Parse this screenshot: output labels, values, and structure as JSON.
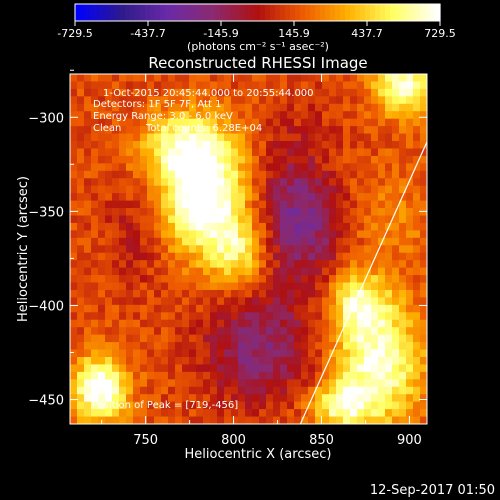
{
  "colorbar": {
    "ticks": [
      "-729.5",
      "-437.7",
      "-145.9",
      "145.9",
      "437.7",
      "729.5"
    ],
    "units": "(photons cm⁻² s⁻¹ asec⁻²)",
    "min": -729.5,
    "max": 729.5
  },
  "title": "Reconstructed RHESSI Image",
  "info": {
    "time_range": "1-Oct-2015 20:45:44.000 to 20:55:44.000",
    "detectors": "Detectors: 1F 5F 7F, Att 1",
    "energy": "Energy Range: 3.0 - 6.0 keV",
    "clean": "Clean",
    "counts": "Total counts: 6.28E+04",
    "peak": "Position of Peak = [719,-456]"
  },
  "footer": {
    "timestamp": "12-Sep-2017 01:50"
  },
  "chart_data": {
    "type": "heatmap",
    "title": "Reconstructed RHESSI Image",
    "xlabel": "Heliocentric X (arcsec)",
    "ylabel": "Heliocentric Y (arcsec)",
    "xlim": [
      707,
      910
    ],
    "ylim": [
      -463,
      -277
    ],
    "x_ticks": [
      750,
      800,
      850,
      900
    ],
    "y_ticks": [
      -300,
      -350,
      -400,
      -450
    ],
    "colormap": [
      "#0000ff",
      "#2f1a8a",
      "#6a2aa8",
      "#8a2a70",
      "#b01010",
      "#ee5a00",
      "#ffb000",
      "#ffff60",
      "#ffffff"
    ],
    "sources": [
      {
        "x": 783,
        "y": -344,
        "peak": 700,
        "sx": 17,
        "sy": 20
      },
      {
        "x": 773,
        "y": -315,
        "peak": 430,
        "sx": 18,
        "sy": 13
      },
      {
        "x": 803,
        "y": -373,
        "peak": 360,
        "sx": 12,
        "sy": 12
      },
      {
        "x": 724,
        "y": -446,
        "peak": 660,
        "sx": 11,
        "sy": 12
      },
      {
        "x": 898,
        "y": -282,
        "peak": 540,
        "sx": 12,
        "sy": 12
      },
      {
        "x": 883,
        "y": -433,
        "peak": 560,
        "sx": 18,
        "sy": 22
      },
      {
        "x": 872,
        "y": -400,
        "peak": 440,
        "sx": 12,
        "sy": 12
      },
      {
        "x": 862,
        "y": -455,
        "peak": 430,
        "sx": 12,
        "sy": 8
      },
      {
        "x": 890,
        "y": -355,
        "peak": 130,
        "sx": 20,
        "sy": 18
      },
      {
        "x": 850,
        "y": -328,
        "peak": 120,
        "sx": 15,
        "sy": 12
      }
    ],
    "background": 140,
    "minima": [
      {
        "x": 840,
        "y": -350,
        "depth": 420,
        "sx": 17,
        "sy": 28
      },
      {
        "x": 815,
        "y": -425,
        "depth": 330,
        "sx": 22,
        "sy": 20
      },
      {
        "x": 745,
        "y": -362,
        "depth": 140,
        "sx": 12,
        "sy": 20
      }
    ],
    "limb_line": {
      "x": [
        838,
        910
      ],
      "y": [
        -463,
        -313
      ]
    }
  }
}
